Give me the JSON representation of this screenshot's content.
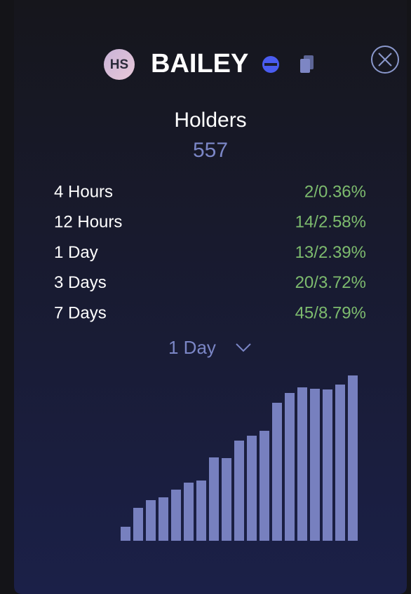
{
  "header": {
    "avatar": "HS",
    "title": "BAILEY"
  },
  "holders": {
    "label": "Holders",
    "value": "557"
  },
  "periods": [
    {
      "label": "4 Hours",
      "value": "2/0.36%"
    },
    {
      "label": "12 Hours",
      "value": "14/2.58%"
    },
    {
      "label": "1 Day",
      "value": "13/2.39%"
    },
    {
      "label": "3 Days",
      "value": "20/3.72%"
    },
    {
      "label": "7 Days",
      "value": "45/8.79%"
    }
  ],
  "dropdown": "1 Day",
  "chart_data": {
    "type": "bar",
    "color": "#7780bf",
    "categories": [
      null,
      null,
      null,
      null,
      null,
      null,
      null,
      null,
      null,
      null,
      null,
      null,
      null,
      null,
      null,
      null,
      null,
      null,
      null
    ],
    "values": [
      20,
      47,
      58,
      62,
      73,
      83,
      86,
      119,
      118,
      143,
      150,
      157,
      197,
      211,
      219,
      217,
      216,
      223,
      236
    ]
  }
}
